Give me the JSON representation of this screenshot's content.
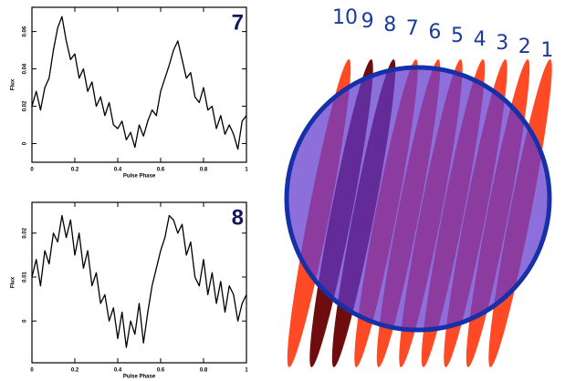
{
  "chart_data": [
    {
      "type": "line",
      "annotation": "7",
      "xlabel": "Pulse Phase",
      "ylabel": "Flux",
      "color": "#000000",
      "x": [
        0,
        0.02,
        0.04,
        0.06,
        0.08,
        0.1,
        0.12,
        0.14,
        0.16,
        0.18,
        0.2,
        0.22,
        0.24,
        0.26,
        0.28,
        0.3,
        0.32,
        0.34,
        0.36,
        0.38,
        0.4,
        0.42,
        0.44,
        0.46,
        0.48,
        0.5,
        0.52,
        0.54,
        0.56,
        0.58,
        0.6,
        0.62,
        0.64,
        0.66,
        0.68,
        0.7,
        0.72,
        0.74,
        0.76,
        0.78,
        0.8,
        0.82,
        0.84,
        0.86,
        0.88,
        0.9,
        0.92,
        0.94,
        0.96,
        0.98,
        1
      ],
      "values": [
        0.02,
        0.028,
        0.018,
        0.03,
        0.035,
        0.05,
        0.062,
        0.068,
        0.055,
        0.045,
        0.048,
        0.035,
        0.04,
        0.028,
        0.033,
        0.02,
        0.025,
        0.015,
        0.022,
        0.01,
        0.008,
        0.012,
        0.002,
        0.006,
        -0.002,
        0.01,
        0.004,
        0.012,
        0.018,
        0.015,
        0.028,
        0.035,
        0.042,
        0.05,
        0.055,
        0.045,
        0.035,
        0.038,
        0.025,
        0.022,
        0.03,
        0.018,
        0.02,
        0.008,
        0.015,
        0.005,
        0.01,
        0.005,
        -0.003,
        0.012,
        0.015
      ],
      "xlim": [
        0,
        1
      ],
      "xticks": [
        0,
        0.2,
        0.4,
        0.6,
        0.8,
        1
      ],
      "ylim": [
        -0.01,
        0.073
      ],
      "yticks": [
        0,
        0.02,
        0.04,
        0.06
      ]
    },
    {
      "type": "line",
      "annotation": "8",
      "xlabel": "Pulse Phase",
      "ylabel": "Flux",
      "color": "#000000",
      "x": [
        0,
        0.02,
        0.04,
        0.06,
        0.08,
        0.1,
        0.12,
        0.14,
        0.16,
        0.18,
        0.2,
        0.22,
        0.24,
        0.26,
        0.28,
        0.3,
        0.32,
        0.34,
        0.36,
        0.38,
        0.4,
        0.42,
        0.44,
        0.46,
        0.48,
        0.5,
        0.52,
        0.54,
        0.56,
        0.58,
        0.6,
        0.62,
        0.64,
        0.66,
        0.68,
        0.7,
        0.72,
        0.74,
        0.76,
        0.78,
        0.8,
        0.82,
        0.84,
        0.86,
        0.88,
        0.9,
        0.92,
        0.94,
        0.96,
        0.98,
        1
      ],
      "values": [
        0.01,
        0.014,
        0.008,
        0.016,
        0.013,
        0.02,
        0.018,
        0.024,
        0.019,
        0.023,
        0.015,
        0.02,
        0.012,
        0.016,
        0.008,
        0.011,
        0.004,
        0.006,
        0.0,
        0.003,
        -0.004,
        0.002,
        -0.006,
        0.0,
        -0.003,
        0.004,
        -0.005,
        0.002,
        0.008,
        0.012,
        0.016,
        0.019,
        0.024,
        0.023,
        0.02,
        0.022,
        0.015,
        0.018,
        0.01,
        0.008,
        0.014,
        0.006,
        0.011,
        0.004,
        0.009,
        0.002,
        0.008,
        0.006,
        0.0,
        0.004,
        0.006
      ],
      "xlim": [
        0,
        1
      ],
      "xticks": [
        0,
        0.2,
        0.4,
        0.6,
        0.8,
        1
      ],
      "ylim": [
        -0.0095,
        0.027
      ],
      "yticks": [
        0,
        0.01,
        0.02
      ]
    }
  ],
  "diagram": {
    "labels": [
      "10",
      "9",
      "8",
      "7",
      "6",
      "5",
      "4",
      "3",
      "2",
      "1"
    ]
  }
}
